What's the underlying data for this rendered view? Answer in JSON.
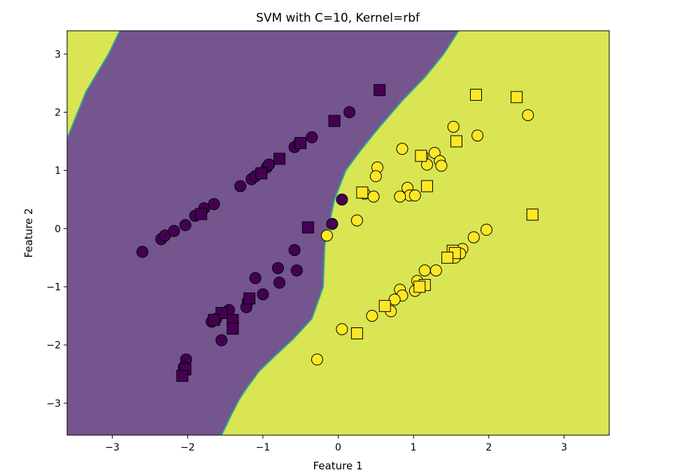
{
  "chart_data": {
    "type": "scatter",
    "title": "SVM with C=10, Kernel=rbf",
    "xlabel": "Feature 1",
    "ylabel": "Feature 2",
    "xlim": [
      -3.6,
      3.6
    ],
    "ylim": [
      -3.55,
      3.4
    ],
    "xticks": [
      -3,
      -2,
      -1,
      0,
      1,
      2,
      3
    ],
    "yticks": [
      -3,
      -2,
      -1,
      0,
      1,
      2,
      3
    ],
    "xtick_labels": [
      "−3",
      "−2",
      "−1",
      "0",
      "1",
      "2",
      "3"
    ],
    "ytick_labels": [
      "−3",
      "−2",
      "−1",
      "0",
      "1",
      "2",
      "3"
    ],
    "grid": false,
    "legend": "none",
    "colors": {
      "class0_region": "#74558e",
      "class1_region": "#d9e553",
      "boundary": "#2aa89a",
      "class0_marker": "#440154",
      "class1_marker": "#fde725",
      "marker_edge": "#000000"
    },
    "decision_boundary": [
      [
        -1.55,
        -3.55
      ],
      [
        -1.42,
        -3.2
      ],
      [
        -1.32,
        -2.95
      ],
      [
        -1.22,
        -2.75
      ],
      [
        -1.05,
        -2.45
      ],
      [
        -0.85,
        -2.2
      ],
      [
        -0.6,
        -1.9
      ],
      [
        -0.35,
        -1.55
      ],
      [
        -0.2,
        -1.0
      ],
      [
        -0.18,
        -0.3
      ],
      [
        -0.05,
        0.5
      ],
      [
        0.1,
        1.0
      ],
      [
        0.3,
        1.35
      ],
      [
        0.55,
        1.75
      ],
      [
        0.85,
        2.2
      ],
      [
        1.15,
        2.6
      ],
      [
        1.4,
        3.0
      ],
      [
        1.6,
        3.4
      ]
    ],
    "left_region_top_boundary": [
      [
        -3.6,
        1.55
      ],
      [
        -3.35,
        2.35
      ],
      [
        -3.05,
        3.0
      ],
      [
        -2.9,
        3.4
      ]
    ],
    "train_points": [
      {
        "x": -2.6,
        "y": -0.4,
        "class": 0
      },
      {
        "x": -2.35,
        "y": -0.18,
        "class": 0
      },
      {
        "x": -2.3,
        "y": -0.12,
        "class": 0
      },
      {
        "x": -2.18,
        "y": -0.04,
        "class": 0
      },
      {
        "x": -2.03,
        "y": 0.06,
        "class": 0
      },
      {
        "x": -1.9,
        "y": 0.22,
        "class": 0
      },
      {
        "x": -1.78,
        "y": 0.35,
        "class": 0
      },
      {
        "x": -1.65,
        "y": 0.42,
        "class": 0
      },
      {
        "x": -1.3,
        "y": 0.73,
        "class": 0
      },
      {
        "x": -1.15,
        "y": 0.85,
        "class": 0
      },
      {
        "x": -1.1,
        "y": 0.9,
        "class": 0
      },
      {
        "x": -0.95,
        "y": 1.05,
        "class": 0
      },
      {
        "x": -0.92,
        "y": 1.1,
        "class": 0
      },
      {
        "x": -0.58,
        "y": 1.4,
        "class": 0
      },
      {
        "x": -0.52,
        "y": 1.47,
        "class": 0
      },
      {
        "x": -0.35,
        "y": 1.57,
        "class": 0
      },
      {
        "x": 0.15,
        "y": 2.0,
        "class": 0
      },
      {
        "x": -0.08,
        "y": 0.08,
        "class": 0
      },
      {
        "x": 0.05,
        "y": 0.5,
        "class": 0
      },
      {
        "x": -0.58,
        "y": -0.37,
        "class": 0
      },
      {
        "x": -0.55,
        "y": -0.72,
        "class": 0
      },
      {
        "x": -0.8,
        "y": -0.68,
        "class": 0
      },
      {
        "x": -0.78,
        "y": -0.93,
        "class": 0
      },
      {
        "x": -1.1,
        "y": -0.85,
        "class": 0
      },
      {
        "x": -1.0,
        "y": -1.13,
        "class": 0
      },
      {
        "x": -1.2,
        "y": -1.25,
        "class": 0
      },
      {
        "x": -1.22,
        "y": -1.35,
        "class": 0
      },
      {
        "x": -1.45,
        "y": -1.4,
        "class": 0
      },
      {
        "x": -1.55,
        "y": -1.45,
        "class": 0
      },
      {
        "x": -1.62,
        "y": -1.55,
        "class": 0
      },
      {
        "x": -1.68,
        "y": -1.6,
        "class": 0
      },
      {
        "x": -1.4,
        "y": -1.63,
        "class": 0
      },
      {
        "x": -1.55,
        "y": -1.92,
        "class": 0
      },
      {
        "x": -2.02,
        "y": -2.25,
        "class": 0
      },
      {
        "x": -2.05,
        "y": -2.38,
        "class": 0
      },
      {
        "x": 0.52,
        "y": 1.05,
        "class": 1
      },
      {
        "x": 0.5,
        "y": 0.9,
        "class": 1
      },
      {
        "x": 0.85,
        "y": 1.37,
        "class": 1
      },
      {
        "x": 0.92,
        "y": 0.7,
        "class": 1
      },
      {
        "x": 0.95,
        "y": 0.57,
        "class": 1
      },
      {
        "x": 0.82,
        "y": 0.55,
        "class": 1
      },
      {
        "x": 1.02,
        "y": 0.57,
        "class": 1
      },
      {
        "x": 1.12,
        "y": 1.25,
        "class": 1
      },
      {
        "x": 1.18,
        "y": 1.1,
        "class": 1
      },
      {
        "x": 1.28,
        "y": 1.3,
        "class": 1
      },
      {
        "x": 1.35,
        "y": 1.16,
        "class": 1
      },
      {
        "x": 1.37,
        "y": 1.08,
        "class": 1
      },
      {
        "x": 1.53,
        "y": 1.75,
        "class": 1
      },
      {
        "x": 1.85,
        "y": 1.6,
        "class": 1
      },
      {
        "x": 2.52,
        "y": 1.95,
        "class": 1
      },
      {
        "x": 0.35,
        "y": 0.6,
        "class": 1
      },
      {
        "x": 0.47,
        "y": 0.55,
        "class": 1
      },
      {
        "x": 0.25,
        "y": 0.14,
        "class": 1
      },
      {
        "x": -0.15,
        "y": -0.12,
        "class": 1
      },
      {
        "x": 1.97,
        "y": -0.02,
        "class": 1
      },
      {
        "x": 1.8,
        "y": -0.15,
        "class": 1
      },
      {
        "x": 1.65,
        "y": -0.35,
        "class": 1
      },
      {
        "x": 1.62,
        "y": -0.43,
        "class": 1
      },
      {
        "x": 1.55,
        "y": -0.5,
        "class": 1
      },
      {
        "x": 1.3,
        "y": -0.72,
        "class": 1
      },
      {
        "x": 1.15,
        "y": -0.72,
        "class": 1
      },
      {
        "x": 1.05,
        "y": -0.9,
        "class": 1
      },
      {
        "x": 1.02,
        "y": -1.07,
        "class": 1
      },
      {
        "x": 0.82,
        "y": -1.05,
        "class": 1
      },
      {
        "x": 0.85,
        "y": -1.15,
        "class": 1
      },
      {
        "x": 0.75,
        "y": -1.22,
        "class": 1
      },
      {
        "x": 0.7,
        "y": -1.42,
        "class": 1
      },
      {
        "x": 0.45,
        "y": -1.5,
        "class": 1
      },
      {
        "x": 0.05,
        "y": -1.73,
        "class": 1
      },
      {
        "x": -0.28,
        "y": -2.25,
        "class": 1
      }
    ],
    "test_points": [
      {
        "x": 0.55,
        "y": 2.38,
        "class": 0
      },
      {
        "x": -0.05,
        "y": 1.85,
        "class": 0
      },
      {
        "x": -0.5,
        "y": 1.47,
        "class": 0
      },
      {
        "x": -0.78,
        "y": 1.2,
        "class": 0
      },
      {
        "x": -1.02,
        "y": 0.95,
        "class": 0
      },
      {
        "x": -1.82,
        "y": 0.25,
        "class": 0
      },
      {
        "x": -0.4,
        "y": 0.02,
        "class": 0
      },
      {
        "x": -1.18,
        "y": -1.2,
        "class": 0
      },
      {
        "x": -1.55,
        "y": -1.45,
        "class": 0
      },
      {
        "x": -1.65,
        "y": -1.57,
        "class": 0
      },
      {
        "x": -1.4,
        "y": -1.57,
        "class": 0
      },
      {
        "x": -1.4,
        "y": -1.72,
        "class": 0
      },
      {
        "x": -2.03,
        "y": -2.42,
        "class": 0
      },
      {
        "x": -2.07,
        "y": -2.53,
        "class": 0
      },
      {
        "x": 1.83,
        "y": 2.3,
        "class": 1
      },
      {
        "x": 2.37,
        "y": 2.26,
        "class": 1
      },
      {
        "x": 1.57,
        "y": 1.5,
        "class": 1
      },
      {
        "x": 1.1,
        "y": 1.25,
        "class": 1
      },
      {
        "x": 1.18,
        "y": 0.73,
        "class": 1
      },
      {
        "x": 0.32,
        "y": 0.62,
        "class": 1
      },
      {
        "x": 2.58,
        "y": 0.24,
        "class": 1
      },
      {
        "x": 1.52,
        "y": -0.38,
        "class": 1
      },
      {
        "x": 1.55,
        "y": -0.42,
        "class": 1
      },
      {
        "x": 1.45,
        "y": -0.5,
        "class": 1
      },
      {
        "x": 1.15,
        "y": -0.97,
        "class": 1
      },
      {
        "x": 1.08,
        "y": -1.0,
        "class": 1
      },
      {
        "x": 0.62,
        "y": -1.33,
        "class": 1
      },
      {
        "x": 0.25,
        "y": -1.8,
        "class": 1
      }
    ]
  }
}
